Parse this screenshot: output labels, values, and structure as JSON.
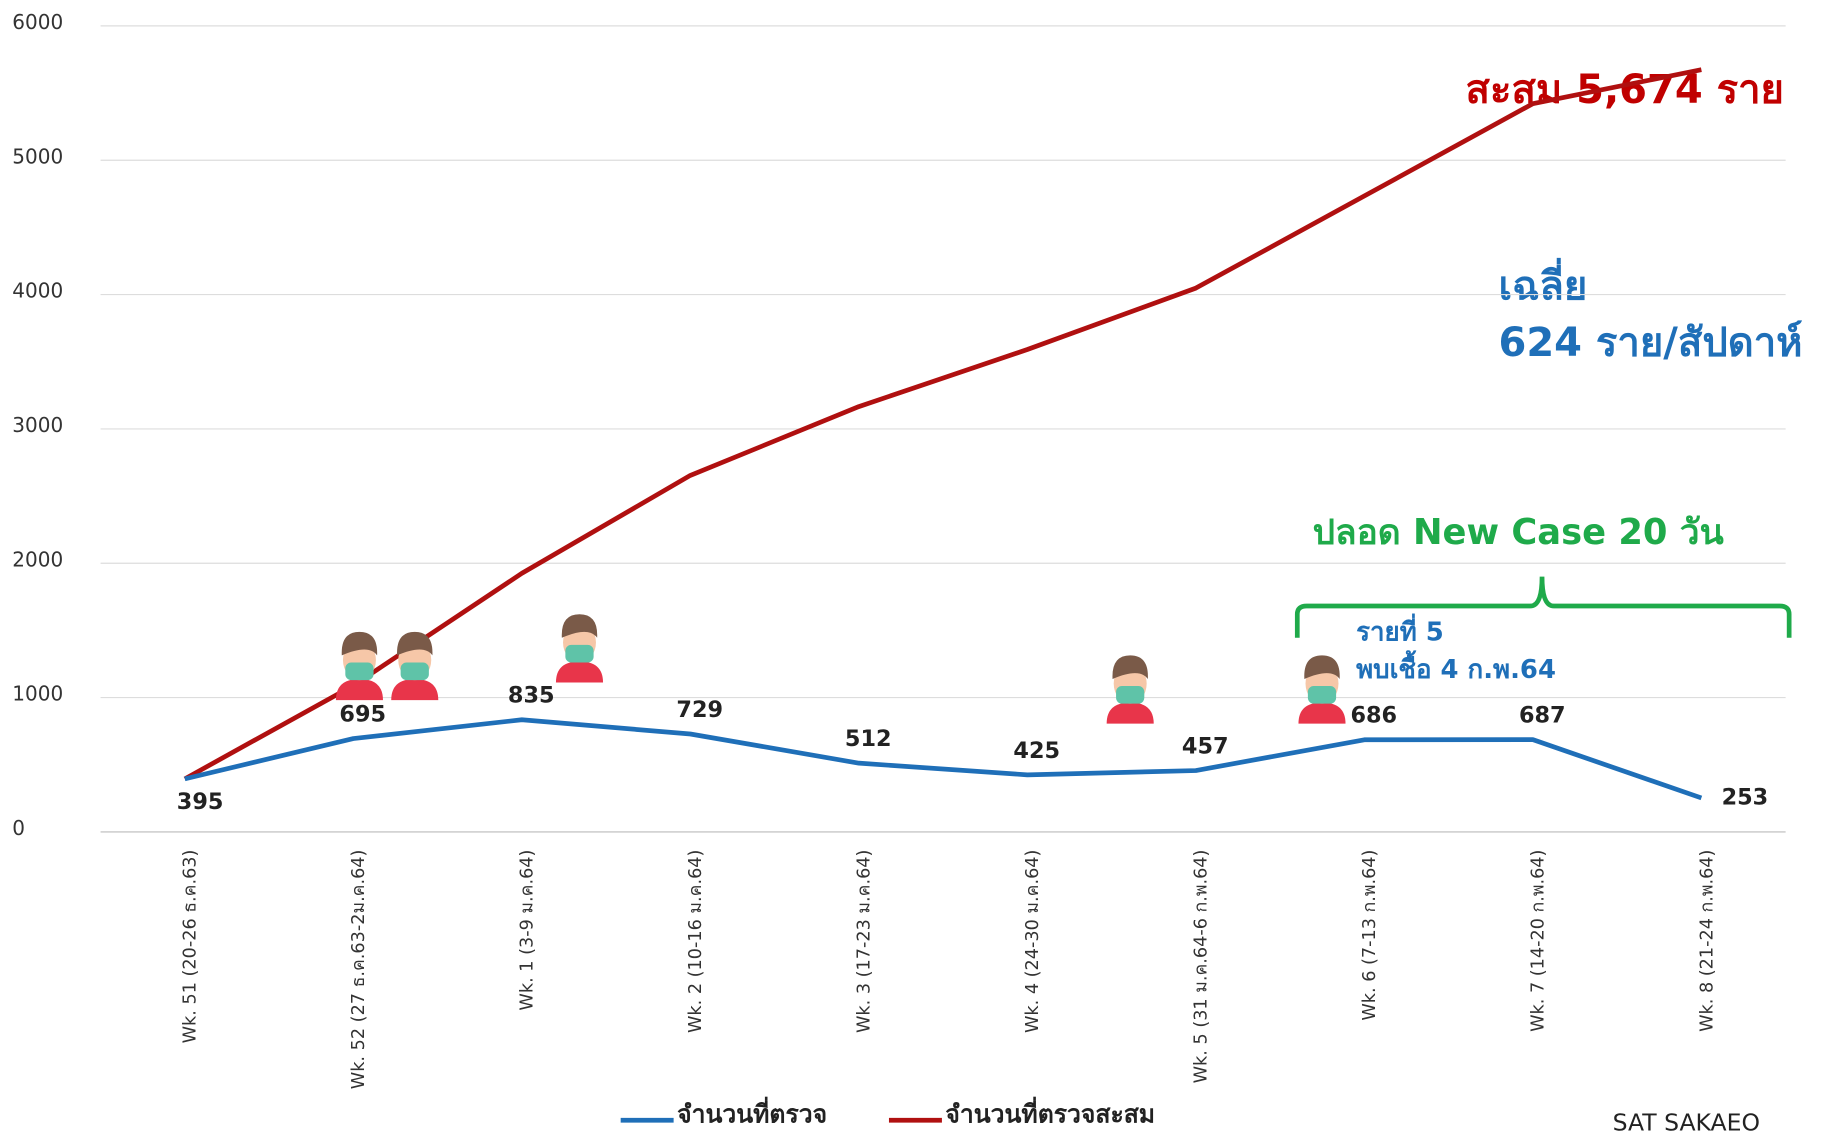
{
  "chart_data": {
    "type": "line",
    "categories": [
      "Wk. 51 (20-26 ธ.ค.63)",
      "Wk. 52 (27 ธ.ค.63-2ม.ค.64)",
      "Wk. 1 (3-9 ม.ค.64)",
      "Wk. 2 (10-16 ม.ค.64)",
      "Wk. 3 (17-23 ม.ค.64)",
      "Wk. 4 (24-30 ม.ค.64)",
      "Wk. 5 (31 ม.ค.64-6 ก.พ.64)",
      "Wk. 6 (7-13 ก.พ.64)",
      "Wk. 7 (14-20 ก.พ.64)",
      "Wk. 8 (21-24 ก.พ.64)"
    ],
    "series": [
      {
        "name": "จำนวนที่ตรวจ",
        "color": "#1f6fb8",
        "values": [
          395,
          695,
          835,
          729,
          512,
          425,
          457,
          686,
          687,
          253
        ]
      },
      {
        "name": "จำนวนที่ตรวจสะสม",
        "color": "#b01010",
        "values": [
          395,
          1090,
          1925,
          2654,
          3166,
          3591,
          4048,
          4734,
          5421,
          5674
        ]
      }
    ],
    "ylim": [
      0,
      6000
    ],
    "yticks": [
      0,
      1000,
      2000,
      3000,
      4000,
      5000,
      6000
    ],
    "grid": true,
    "legend": "bottom",
    "annotations": [
      "สะสม 5,674 ราย",
      "เฉลี่ย",
      "624 ราย/สัปดาห์",
      "ปลอด New Case 20  วัน",
      "รายที่ 5",
      "พบเชื้อ 4 ก.พ.64",
      "SAT SAKAEO"
    ]
  }
}
